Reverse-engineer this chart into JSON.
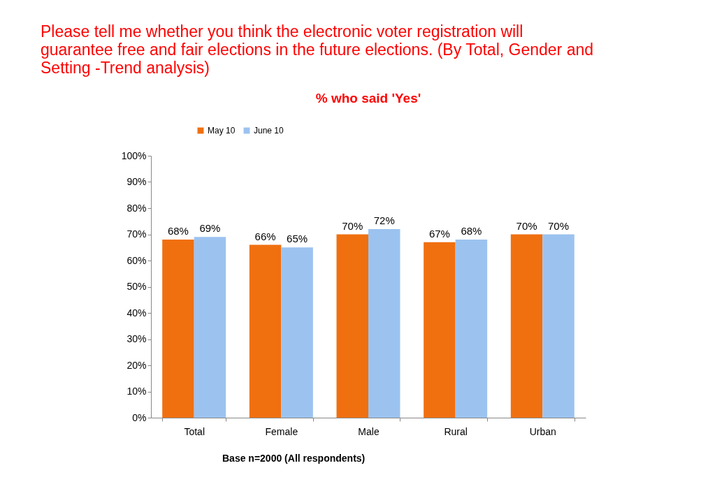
{
  "chart_data": {
    "type": "bar",
    "title": "Please tell me whether you think the electronic voter registration will guarantee free and fair elections in the future elections. (By Total, Gender and Setting -Trend analysis)",
    "subtitle": "% who said 'Yes'",
    "categories": [
      "Total",
      "Female",
      "Male",
      "Rural",
      "Urban"
    ],
    "series": [
      {
        "name": "May 10",
        "color": "#f07010",
        "values": [
          68,
          66,
          70,
          67,
          70
        ],
        "value_labels": [
          "68%",
          "66%",
          "70%",
          "67%",
          "70%"
        ]
      },
      {
        "name": "June 10",
        "color": "#9cc3f0",
        "values": [
          69,
          65,
          72,
          68,
          70
        ],
        "value_labels": [
          "69%",
          "65%",
          "72%",
          "68%",
          "70%"
        ]
      }
    ],
    "ylim": [
      0,
      100
    ],
    "yticks": [
      {
        "value": 0,
        "label": "0%"
      },
      {
        "value": 10,
        "label": "10%"
      },
      {
        "value": 20,
        "label": "20%"
      },
      {
        "value": 30,
        "label": "30%"
      },
      {
        "value": 40,
        "label": "40%"
      },
      {
        "value": 50,
        "label": "50%"
      },
      {
        "value": 60,
        "label": "60%"
      },
      {
        "value": 70,
        "label": "70%"
      },
      {
        "value": 80,
        "label": "80%"
      },
      {
        "value": 90,
        "label": "90%"
      },
      {
        "value": 100,
        "label": "100%"
      }
    ],
    "grid": false,
    "legend": "top",
    "annotations": [
      "Base n=2000 (All respondents)"
    ]
  }
}
